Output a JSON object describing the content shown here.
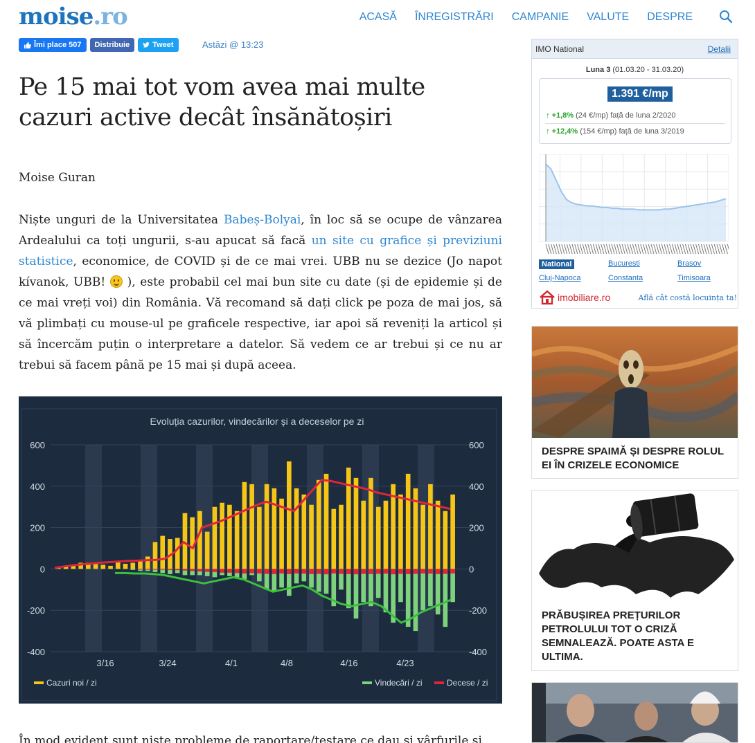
{
  "header": {
    "logo_main": "moise",
    "logo_dot": ".ro",
    "nav": [
      "ACASĂ",
      "ÎNREGISTRĂRI",
      "CAMPANIE",
      "VALUTE",
      "DESPRE"
    ]
  },
  "social": {
    "like": "Îmi place 507",
    "share": "Distribuie",
    "tweet": "Tweet",
    "today": "Astăzi @ 13:23"
  },
  "article": {
    "title": "Pe 15 mai tot vom avea mai multe cazuri active decât însănătoșiri",
    "author": "Moise Guran",
    "p1_a": "Niște unguri de la Universitatea ",
    "p1_link1": "Babeș-Bolyai",
    "p1_b": ", în loc să se ocupe de vânzarea Ardealului ca toți ungurii, s-au apucat să facă ",
    "p1_link2": "un site cu grafice și previziuni statistice",
    "p1_c": ", economice, de COVID și de ce mai vrei. UBB nu se dezice (Jo napot kívanok, UBB! ",
    "p1_d": " ), este probabil cel mai bun site cu date (și de epidemie și de ce mai vreți voi) din România. Vă recomand să dați click pe poza de mai jos, să vă plimbați cu mouse-ul pe graficele respective, iar apoi să reveniți la articol și să încercăm puțin o interpretare a datelor. Să vedem ce ar trebui și ce nu ar trebui să facem până pe 15 mai și după aceea.",
    "p2": "În mod evident sunt niște probleme de raportare/testare ce dau și vârfurile și găurile"
  },
  "chart_data": {
    "type": "bar",
    "title": "Evoluția cazurilor, vindecărilor și a deceselor pe zi",
    "ylim": [
      -400,
      600
    ],
    "yticks": [
      "600",
      "400",
      "200",
      "0",
      "-200",
      "-400"
    ],
    "xticks": [
      "3/16",
      "3/24",
      "4/1",
      "4/8",
      "4/16",
      "4/23"
    ],
    "series": [
      {
        "name": "Cazuri noi / zi",
        "color": "#f5c518",
        "values": [
          10,
          10,
          15,
          30,
          30,
          25,
          20,
          15,
          35,
          25,
          30,
          45,
          60,
          130,
          160,
          145,
          150,
          270,
          250,
          280,
          180,
          300,
          320,
          310,
          280,
          420,
          410,
          300,
          410,
          390,
          340,
          520,
          390,
          360,
          310,
          430,
          460,
          290,
          310,
          490,
          440,
          330,
          440,
          300,
          330,
          410,
          360,
          460,
          390,
          310,
          410,
          330,
          280,
          360
        ]
      },
      {
        "name": "Vindecări / zi",
        "color": "#7ed27e",
        "values": [
          0,
          0,
          0,
          0,
          0,
          0,
          0,
          0,
          0,
          0,
          -5,
          -10,
          -10,
          -15,
          -20,
          -25,
          -20,
          -30,
          -30,
          -30,
          -35,
          -40,
          -30,
          -35,
          -40,
          -50,
          -30,
          -60,
          -100,
          -110,
          -90,
          -130,
          -70,
          -60,
          -90,
          -110,
          -120,
          -180,
          -100,
          -190,
          -240,
          -160,
          -180,
          -140,
          -210,
          -260,
          -160,
          -280,
          -300,
          -200,
          -180,
          -220,
          -280,
          -160
        ]
      },
      {
        "name": "Decese / zi",
        "color": "#e0253a",
        "values": [
          0,
          0,
          0,
          0,
          0,
          0,
          0,
          0,
          0,
          0,
          0,
          -1,
          -2,
          -3,
          -4,
          -5,
          -6,
          -8,
          -10,
          -12,
          -14,
          -15,
          -18,
          -18,
          -20,
          -22,
          -20,
          -22,
          -24,
          -25,
          -22,
          -25,
          -22,
          -23,
          -25,
          -24,
          -26,
          -22,
          -24,
          -25,
          -26,
          -24,
          -25,
          -24,
          -23,
          -26,
          -24,
          -25,
          -24,
          -22,
          -23,
          -25,
          -24,
          -22
        ]
      }
    ],
    "trend_cases": [
      5,
      12,
      18,
      22,
      26,
      30,
      33,
      36,
      39,
      40,
      42,
      44,
      50,
      80,
      130,
      100,
      200,
      215,
      230,
      250,
      270,
      290,
      310,
      325,
      310,
      295,
      280,
      330,
      380,
      430,
      425,
      415,
      405,
      395,
      385,
      370,
      360,
      350,
      340,
      330,
      320,
      310,
      300,
      290
    ],
    "trend_recov": [
      -20,
      -20,
      -22,
      -22,
      -25,
      -30,
      -40,
      -50,
      -60,
      -70,
      -60,
      -50,
      -40,
      -50,
      -70,
      -90,
      -110,
      -100,
      -90,
      -80,
      -100,
      -130,
      -150,
      -170,
      -180,
      -170,
      -160,
      -180,
      -220,
      -260,
      -240,
      -210,
      -190,
      -170,
      -150
    ]
  },
  "widget": {
    "title": "IMO National",
    "details": "Detalii",
    "period_label": "Luna 3",
    "period_range": "(01.03.20 - 31.03.20)",
    "price": "1.391 €/mp",
    "row1_pct": "+1,8%",
    "row1_rest": "(24 €/mp) față de luna 2/2020",
    "row2_pct": "+12,4%",
    "row2_rest": "(154 €/mp) față de luna 3/2019",
    "price_trend": [
      0.92,
      0.86,
      0.72,
      0.58,
      0.48,
      0.44,
      0.42,
      0.41,
      0.4,
      0.4,
      0.39,
      0.38,
      0.38,
      0.37,
      0.37,
      0.36,
      0.36,
      0.36,
      0.35,
      0.35,
      0.35,
      0.35,
      0.35,
      0.36,
      0.36,
      0.37,
      0.38,
      0.39,
      0.4,
      0.41,
      0.42,
      0.43,
      0.44,
      0.45,
      0.47,
      0.49
    ],
    "links": [
      "National",
      "Bucuresti",
      "Brasov",
      "Cluj-Napoca",
      "Constanta",
      "Timisoara"
    ],
    "brand": "imobiliare.ro",
    "brand_tag": "Află cât costă locuința ta!"
  },
  "cards": [
    {
      "caption": "DESPRE SPAIMĂ ȘI DESPRE ROLUL EI ÎN CRIZELE ECONOMICE"
    },
    {
      "caption": "PRĂBUȘIREA PREȚURILOR PETROLULUI TOT O CRIZĂ SEMNALEAZĂ. POATE ASTA E ULTIMA."
    },
    {
      "caption": ""
    }
  ]
}
